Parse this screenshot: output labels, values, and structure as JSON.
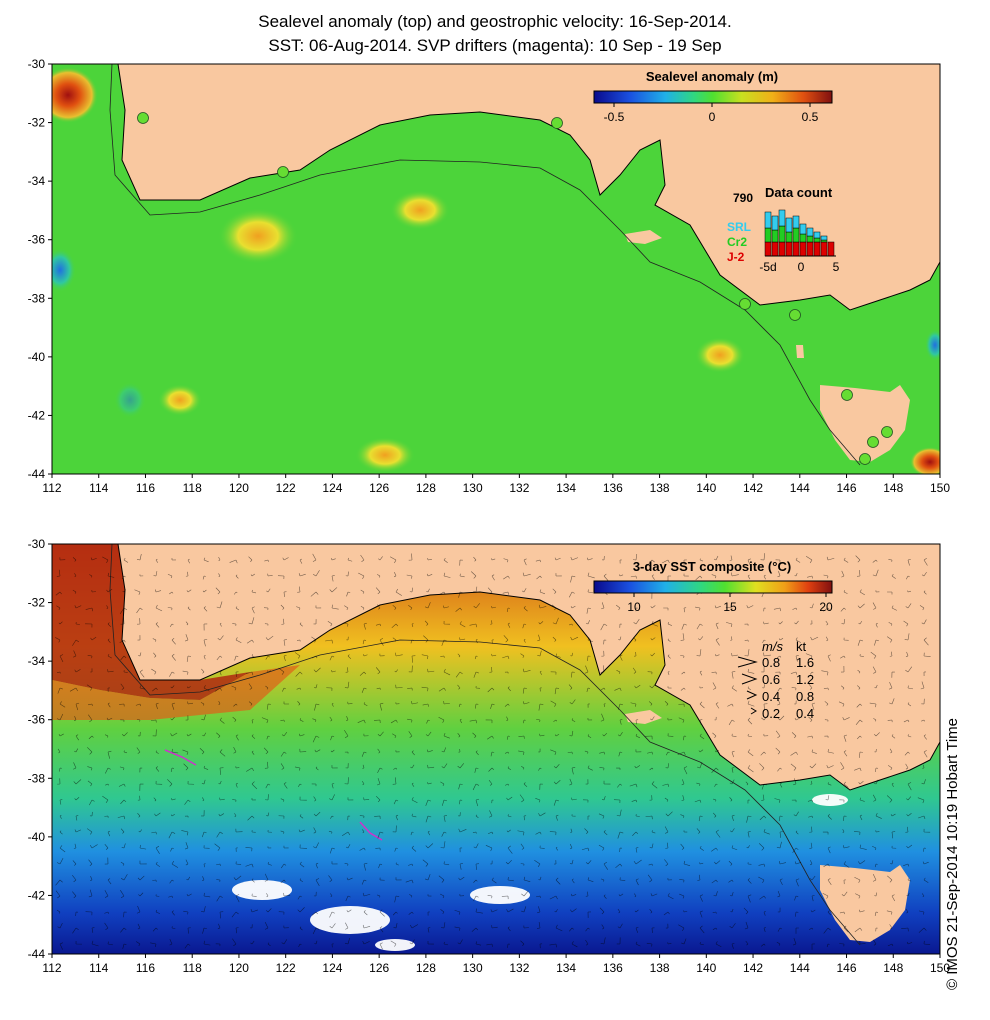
{
  "header": {
    "line1": "Sealevel anomaly (top) and geostrophic velocity: 16-Sep-2014.",
    "line2": "SST: 06-Aug-2014. SVP drifters (magenta): 10 Sep - 19 Sep"
  },
  "credit": "© IMOS 21-Sep-2014 10:19 Hobart Time",
  "colors": {
    "land": "#f9c8a0",
    "ocean_green": "#4cd43a",
    "coast_line": "#000000",
    "drifter": "#cc33cc",
    "tide_gauge": "#66dd33"
  },
  "top_panel": {
    "colorbar_title": "Sealevel anomaly (m)",
    "colorbar_ticks": [
      "-0.5",
      "0",
      "0.5"
    ],
    "data_count": {
      "title": "Data count",
      "max_label": "790",
      "satellites": [
        {
          "label": "SRL",
          "color": "#33ccee"
        },
        {
          "label": "Cr2",
          "color": "#22cc22"
        },
        {
          "label": "J-2",
          "color": "#dd0000"
        }
      ],
      "x_ticks": [
        "-5d",
        "0",
        "5"
      ]
    }
  },
  "bottom_panel": {
    "colorbar_title": "3-day SST composite (°C)",
    "colorbar_ticks": [
      "10",
      "15",
      "20"
    ],
    "velocity_legend": {
      "header_ms": "m/s",
      "header_kt": "kt",
      "rows": [
        {
          "ms": "0.8",
          "kt": "1.6"
        },
        {
          "ms": "0.6",
          "kt": "1.2"
        },
        {
          "ms": "0.4",
          "kt": "0.8"
        },
        {
          "ms": "0.2",
          "kt": "0.4"
        }
      ]
    }
  },
  "axes": {
    "x_ticks": [
      "112",
      "114",
      "116",
      "118",
      "120",
      "122",
      "124",
      "126",
      "128",
      "130",
      "132",
      "134",
      "136",
      "138",
      "140",
      "142",
      "144",
      "146",
      "148",
      "150"
    ],
    "y_ticks": [
      "-30",
      "-32",
      "-34",
      "-36",
      "-38",
      "-40",
      "-42",
      "-44"
    ]
  }
}
